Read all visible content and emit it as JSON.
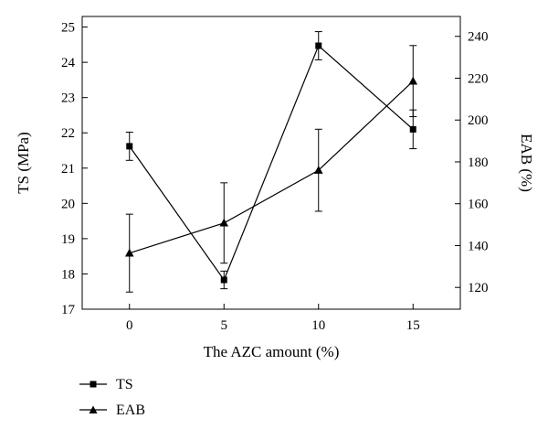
{
  "chart_data": {
    "type": "line",
    "xlabel": "The AZC amount (%)",
    "x": [
      0,
      5,
      10,
      15
    ],
    "xlim": [
      -2.5,
      17.5
    ],
    "x_ticks": [
      0,
      5,
      10,
      15
    ],
    "y_left": {
      "label": "TS (MPa)",
      "lim": [
        17,
        25.3
      ],
      "ticks": [
        17,
        18,
        19,
        20,
        21,
        22,
        23,
        24,
        25
      ]
    },
    "y_right": {
      "label": "EAB (%)",
      "lim": [
        109.6,
        249.5
      ],
      "ticks": [
        120,
        140,
        160,
        180,
        200,
        220,
        240
      ]
    },
    "grid": false,
    "legend_position": "bottom-left",
    "series": [
      {
        "name": "TS",
        "axis": "left",
        "marker": "square",
        "values": [
          21.62,
          17.83,
          24.47,
          22.1
        ],
        "errors": [
          0.4,
          0.25,
          0.4,
          0.55
        ]
      },
      {
        "name": "EAB",
        "axis": "right",
        "marker": "triangle",
        "values": [
          136.4,
          150.8,
          176,
          218.6
        ],
        "errors": [
          18.6,
          19.2,
          19.6,
          17
        ]
      }
    ]
  }
}
